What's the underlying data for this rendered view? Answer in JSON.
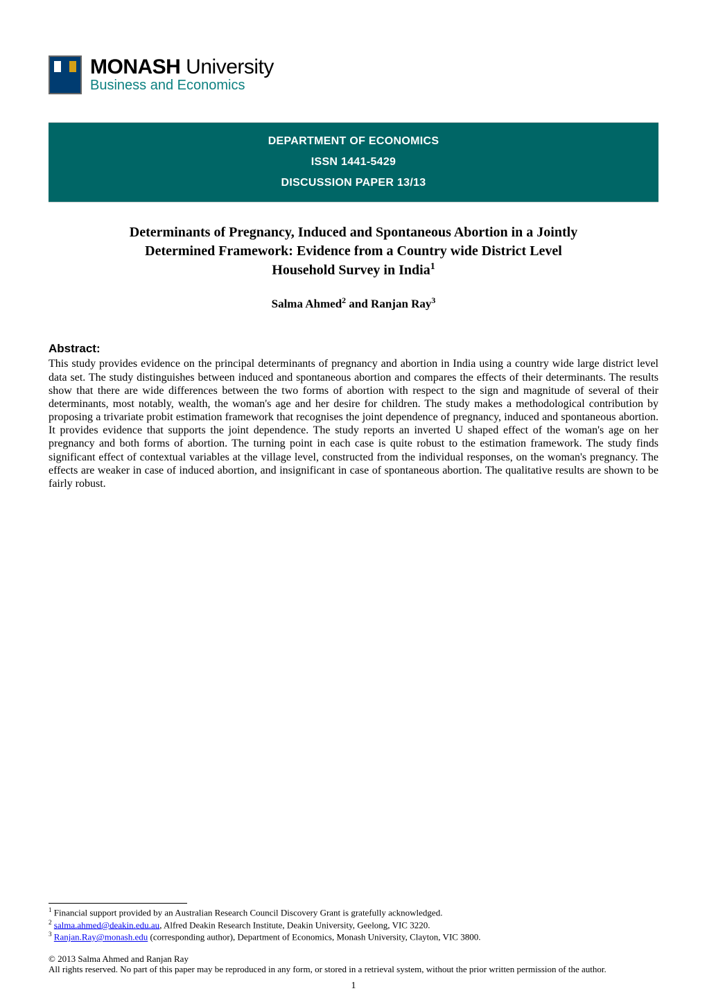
{
  "logo": {
    "main_bold": "MONASH",
    "main_light": " University",
    "subtitle": "Business and Economics"
  },
  "banner": {
    "line1": "DEPARTMENT OF ECONOMICS",
    "line2": "ISSN 1441-5429",
    "line3": "DISCUSSION PAPER 13/13",
    "bg_color": "#006666",
    "text_color": "#ffffff"
  },
  "title": {
    "line1": "Determinants of Pregnancy, Induced and Spontaneous Abortion in a Jointly",
    "line2": "Determined Framework: Evidence from a Country wide District Level",
    "line3": "Household Survey in India",
    "sup": "1"
  },
  "authors": {
    "a1_name": "Salma Ahmed",
    "a1_sup": "2",
    "connector": " and ",
    "a2_name": "Ranjan Ray",
    "a2_sup": "3"
  },
  "abstract": {
    "heading": "Abstract:",
    "body": "This study provides evidence on the principal determinants of pregnancy and abortion in India using a country wide large district level data set. The study distinguishes between induced and spontaneous abortion and compares the effects of their determinants. The results show that there are wide differences between the two forms of abortion with respect to the sign and magnitude of several of their determinants, most notably, wealth, the woman's age and her desire for children. The study makes a methodological contribution by proposing a trivariate probit estimation framework that recognises the joint dependence of pregnancy, induced and spontaneous abortion. It provides evidence that supports the joint dependence. The study reports an inverted U shaped effect of the woman's age on her pregnancy and both forms of abortion. The turning point in each case is quite robust to the estimation framework. The study finds significant effect of contextual variables at the village level, constructed from the individual responses, on the woman's pregnancy. The effects are weaker in case of induced abortion, and insignificant in case of spontaneous abortion. The qualitative results are shown to be fairly robust."
  },
  "footnotes": {
    "f1_num": "1",
    "f1_text": " Financial support provided by an Australian Research Council Discovery Grant is gratefully acknowledged.",
    "f2_num": "2",
    "f2_link": "salma.ahmed@deakin.edu.au",
    "f2_text": ", Alfred Deakin Research Institute, Deakin University, Geelong, VIC 3220.",
    "f3_num": "3",
    "f3_link": "Ranjan.Ray@monash.edu",
    "f3_text": " (corresponding author), Department of Economics, Monash University, Clayton, VIC 3800."
  },
  "copyright": {
    "line1": "© 2013 Salma Ahmed and Ranjan Ray",
    "line2": "All rights reserved. No part of this paper may be reproduced in any form, or stored in a retrieval system, without the prior written permission of the author."
  },
  "page_number": "1",
  "colors": {
    "teal_banner": "#006666",
    "teal_subtitle": "#0c8080",
    "link": "#0000ee",
    "shield_blue": "#003c71"
  }
}
